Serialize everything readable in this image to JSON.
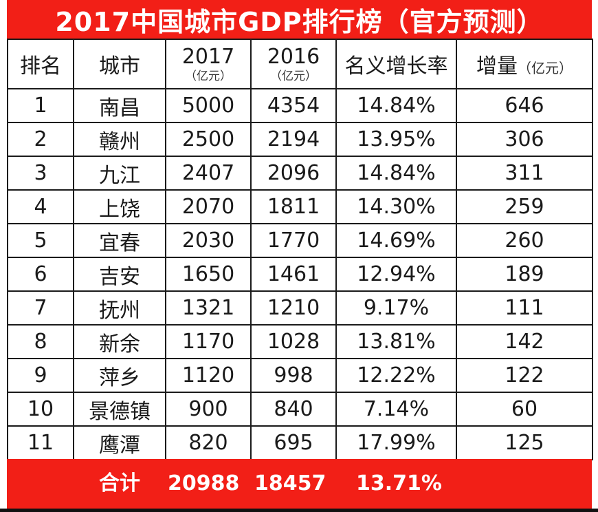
{
  "title": "2017中国城市GDP排行榜（官方预测）",
  "headers": {
    "rank": "排名",
    "city": "城市",
    "y2017": "2017",
    "y2017_unit": "（亿元）",
    "y2016": "2016",
    "y2016_unit": "（亿元）",
    "growth": "名义增长率",
    "increase": "增量",
    "increase_unit": "（亿元）"
  },
  "rows": [
    {
      "rank": "1",
      "city": "南昌",
      "y2017": "5000",
      "y2016": "4354",
      "growth": "14.84%",
      "increase": "646"
    },
    {
      "rank": "2",
      "city": "赣州",
      "y2017": "2500",
      "y2016": "2194",
      "growth": "13.95%",
      "increase": "306"
    },
    {
      "rank": "3",
      "city": "九江",
      "y2017": "2407",
      "y2016": "2096",
      "growth": "14.84%",
      "increase": "311"
    },
    {
      "rank": "4",
      "city": "上饶",
      "y2017": "2070",
      "y2016": "1811",
      "growth": "14.30%",
      "increase": "259"
    },
    {
      "rank": "5",
      "city": "宜春",
      "y2017": "2030",
      "y2016": "1770",
      "growth": "14.69%",
      "increase": "260"
    },
    {
      "rank": "6",
      "city": "吉安",
      "y2017": "1650",
      "y2016": "1461",
      "growth": "12.94%",
      "increase": "189"
    },
    {
      "rank": "7",
      "city": "抚州",
      "y2017": "1321",
      "y2016": "1210",
      "growth": "9.17%",
      "increase": "111"
    },
    {
      "rank": "8",
      "city": "新余",
      "y2017": "1170",
      "y2016": "1028",
      "growth": "13.81%",
      "increase": "142"
    },
    {
      "rank": "9",
      "city": "萍乡",
      "y2017": "1120",
      "y2016": "998",
      "growth": "12.22%",
      "increase": "122"
    },
    {
      "rank": "10",
      "city": "景德镇",
      "y2017": "900",
      "y2016": "840",
      "growth": "7.14%",
      "increase": "60"
    },
    {
      "rank": "11",
      "city": "鹰潭",
      "y2017": "820",
      "y2016": "695",
      "growth": "17.99%",
      "increase": "125"
    }
  ],
  "total": {
    "label": "合计",
    "y2017": "20988",
    "y2016": "18457",
    "growth": "13.71%"
  },
  "colors": {
    "accent_red": "#f21f17",
    "text": "#1a1a1a",
    "header_text": "#ffffff"
  }
}
